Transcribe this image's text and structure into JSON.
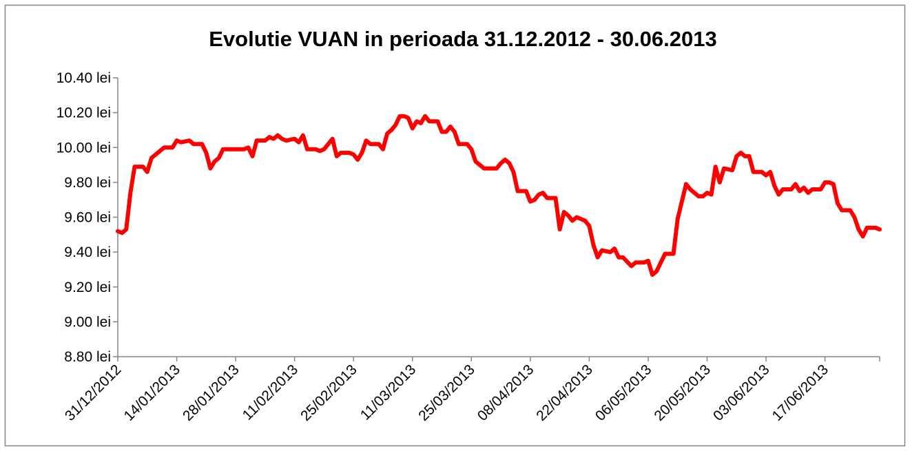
{
  "chart_data": {
    "type": "line",
    "title": "Evolutie VUAN in perioada 31.12.2012 - 30.06.2013",
    "color": "#ff0000",
    "x": [
      "31/12/2012",
      "01/01/2013",
      "02/01/2013",
      "03/01/2013",
      "04/01/2013",
      "06/01/2013",
      "07/01/2013",
      "08/01/2013",
      "10/01/2013",
      "11/01/2013",
      "13/01/2013",
      "14/01/2013",
      "15/01/2013",
      "17/01/2013",
      "18/01/2013",
      "20/01/2013",
      "21/01/2013",
      "22/01/2013",
      "23/01/2013",
      "24/01/2013",
      "25/01/2013",
      "27/01/2013",
      "28/01/2013",
      "30/01/2013",
      "31/01/2013",
      "01/02/2013",
      "02/02/2013",
      "04/02/2013",
      "05/02/2013",
      "06/02/2013",
      "07/02/2013",
      "08/02/2013",
      "09/02/2013",
      "11/02/2013",
      "12/02/2013",
      "13/02/2013",
      "14/02/2013",
      "16/02/2013",
      "17/02/2013",
      "18/02/2013",
      "20/02/2013",
      "21/02/2013",
      "22/02/2013",
      "24/02/2013",
      "25/02/2013",
      "26/02/2013",
      "27/02/2013",
      "28/02/2013",
      "01/03/2013",
      "03/03/2013",
      "04/03/2013",
      "05/03/2013",
      "06/03/2013",
      "07/03/2013",
      "08/03/2013",
      "09/03/2013",
      "10/03/2013",
      "11/03/2013",
      "12/03/2013",
      "13/03/2013",
      "14/03/2013",
      "15/03/2013",
      "17/03/2013",
      "18/03/2013",
      "19/03/2013",
      "20/03/2013",
      "21/03/2013",
      "22/03/2013",
      "24/03/2013",
      "25/03/2013",
      "26/03/2013",
      "28/03/2013",
      "31/03/2013",
      "01/04/2013",
      "02/04/2013",
      "03/04/2013",
      "04/04/2013",
      "05/04/2013",
      "07/04/2013",
      "08/04/2013",
      "09/04/2013",
      "10/04/2013",
      "11/04/2013",
      "12/04/2013",
      "14/04/2013",
      "15/04/2013",
      "16/04/2013",
      "17/04/2013",
      "18/04/2013",
      "19/04/2013",
      "20/04/2013",
      "21/04/2013",
      "22/04/2013",
      "23/04/2013",
      "24/04/2013",
      "25/04/2013",
      "27/04/2013",
      "28/04/2013",
      "29/04/2013",
      "30/04/2013",
      "02/05/2013",
      "03/05/2013",
      "05/05/2013",
      "06/05/2013",
      "07/05/2013",
      "08/05/2013",
      "10/05/2013",
      "12/05/2013",
      "13/05/2013",
      "15/05/2013",
      "16/05/2013",
      "18/05/2013",
      "19/05/2013",
      "20/05/2013",
      "21/05/2013",
      "22/05/2013",
      "23/05/2013",
      "24/05/2013",
      "26/05/2013",
      "27/05/2013",
      "28/05/2013",
      "29/05/2013",
      "30/05/2013",
      "31/05/2013",
      "02/06/2013",
      "03/06/2013",
      "04/06/2013",
      "05/06/2013",
      "06/06/2013",
      "07/06/2013",
      "09/06/2013",
      "10/06/2013",
      "11/06/2013",
      "12/06/2013",
      "13/06/2013",
      "14/06/2013",
      "16/06/2013",
      "17/06/2013",
      "18/06/2013",
      "19/06/2013",
      "20/06/2013",
      "21/06/2013",
      "23/06/2013",
      "24/06/2013",
      "25/06/2013",
      "26/06/2013",
      "27/06/2013",
      "29/06/2013",
      "30/06/2013"
    ],
    "values": [
      9.52,
      9.51,
      9.53,
      9.74,
      9.89,
      9.89,
      9.86,
      9.94,
      9.98,
      10.0,
      10.0,
      10.04,
      10.03,
      10.04,
      10.02,
      10.02,
      9.97,
      9.88,
      9.92,
      9.94,
      9.99,
      9.99,
      9.99,
      9.99,
      10.0,
      9.95,
      10.04,
      10.04,
      10.06,
      10.05,
      10.07,
      10.05,
      10.04,
      10.05,
      10.03,
      10.07,
      9.99,
      9.99,
      9.98,
      9.99,
      10.05,
      9.95,
      9.97,
      9.97,
      9.96,
      9.93,
      9.97,
      10.04,
      10.02,
      10.02,
      9.99,
      10.08,
      10.1,
      10.13,
      10.18,
      10.18,
      10.17,
      10.11,
      10.15,
      10.14,
      10.18,
      10.15,
      10.15,
      10.09,
      10.09,
      10.12,
      10.09,
      10.02,
      10.02,
      9.99,
      9.92,
      9.88,
      9.88,
      9.91,
      9.93,
      9.91,
      9.86,
      9.75,
      9.75,
      9.69,
      9.7,
      9.73,
      9.74,
      9.71,
      9.71,
      9.53,
      9.63,
      9.61,
      9.58,
      9.6,
      9.59,
      9.58,
      9.55,
      9.44,
      9.37,
      9.41,
      9.4,
      9.42,
      9.37,
      9.37,
      9.32,
      9.34,
      9.34,
      9.35,
      9.27,
      9.29,
      9.39,
      9.39,
      9.59,
      9.79,
      9.76,
      9.72,
      9.72,
      9.74,
      9.73,
      9.89,
      9.8,
      9.88,
      9.87,
      9.95,
      9.97,
      9.95,
      9.95,
      9.86,
      9.86,
      9.84,
      9.86,
      9.78,
      9.73,
      9.76,
      9.76,
      9.79,
      9.75,
      9.77,
      9.74,
      9.76,
      9.76,
      9.8,
      9.8,
      9.79,
      9.68,
      9.64,
      9.64,
      9.6,
      9.53,
      9.49,
      9.54,
      9.54,
      9.53
    ],
    "xlim": [
      "31/12/2012",
      "30/06/2013"
    ],
    "xticks": [
      "31/12/2012",
      "14/01/2013",
      "28/01/2013",
      "11/02/2013",
      "25/02/2013",
      "11/03/2013",
      "25/03/2013",
      "08/04/2013",
      "22/04/2013",
      "06/05/2013",
      "20/05/2013",
      "03/06/2013",
      "17/06/2013"
    ],
    "ylim": [
      8.8,
      10.4
    ],
    "yticks": [
      {
        "value": 8.8,
        "label": "8.80 lei"
      },
      {
        "value": 9.0,
        "label": "9.00 lei"
      },
      {
        "value": 9.2,
        "label": "9.20 lei"
      },
      {
        "value": 9.4,
        "label": "9.40 lei"
      },
      {
        "value": 9.6,
        "label": "9.60 lei"
      },
      {
        "value": 9.8,
        "label": "9.80 lei"
      },
      {
        "value": 10.0,
        "label": "10.00 lei"
      },
      {
        "value": 10.2,
        "label": "10.20 lei"
      },
      {
        "value": 10.4,
        "label": "10.40 lei"
      }
    ],
    "grid": false
  }
}
